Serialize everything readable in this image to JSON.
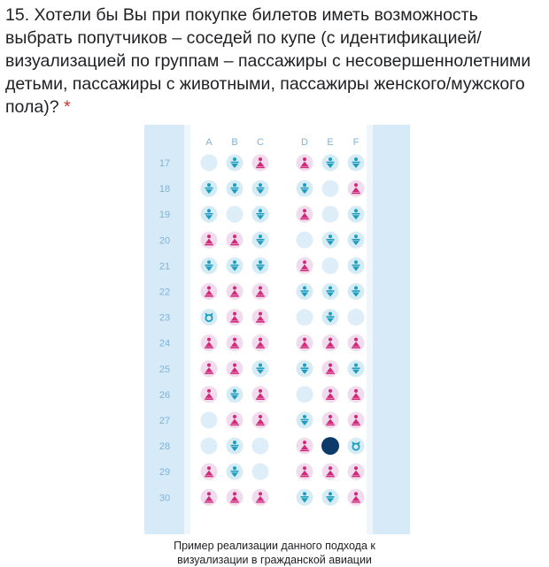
{
  "question": {
    "text": "15. Хотели бы Вы при покупке билетов иметь возможность выбрать попутчиков – соседей по купе (с идентификацией/визуализацией по группам – пассажиры с несовершеннолетними детьми, пассажиры с животными, пассажиры женского/мужского пола)?",
    "required_mark": "*",
    "required_color": "#d93025"
  },
  "seatmap": {
    "columns_left": [
      "A",
      "B",
      "C"
    ],
    "columns_right": [
      "D",
      "E",
      "F"
    ],
    "colors": {
      "cabin_wall": "#d6eaf8",
      "label": "#7fb3d5",
      "empty_seat": "#deeef8",
      "male_bg": "#d6ecf5",
      "male_icon": "#1e9cc0",
      "female_bg": "#f0dcec",
      "female_icon": "#d1287a",
      "animal_bg": "#d6ecf5",
      "animal_icon": "#1e9cc0",
      "selected": "#0b3a6b"
    },
    "legend_codes": {
      "e": "empty-seat",
      "m": "male-passenger",
      "f": "female-passenger",
      "a": "passenger-with-animal",
      "s": "selected-seat"
    },
    "rows": [
      {
        "num": "17",
        "seats": [
          "e",
          "m",
          "f",
          "f",
          "m",
          "m"
        ]
      },
      {
        "num": "18",
        "seats": [
          "m",
          "m",
          "m",
          "m",
          "e",
          "f"
        ]
      },
      {
        "num": "19",
        "seats": [
          "m",
          "e",
          "m",
          "f",
          "e",
          "m"
        ]
      },
      {
        "num": "20",
        "seats": [
          "f",
          "f",
          "m",
          "e",
          "m",
          "m"
        ]
      },
      {
        "num": "21",
        "seats": [
          "m",
          "m",
          "m",
          "f",
          "e",
          "m"
        ]
      },
      {
        "num": "22",
        "seats": [
          "f",
          "f",
          "f",
          "m",
          "m",
          "m"
        ]
      },
      {
        "num": "23",
        "seats": [
          "a",
          "f",
          "f",
          "e",
          "m",
          "e"
        ]
      },
      {
        "num": "24",
        "seats": [
          "f",
          "f",
          "f",
          "f",
          "f",
          "f"
        ]
      },
      {
        "num": "25",
        "seats": [
          "f",
          "f",
          "m",
          "m",
          "f",
          "m"
        ]
      },
      {
        "num": "26",
        "seats": [
          "f",
          "m",
          "f",
          "e",
          "f",
          "f"
        ]
      },
      {
        "num": "27",
        "seats": [
          "e",
          "f",
          "f",
          "m",
          "f",
          "f"
        ]
      },
      {
        "num": "28",
        "seats": [
          "e",
          "m",
          "e",
          "f",
          "s",
          "a"
        ]
      },
      {
        "num": "29",
        "seats": [
          "f",
          "m",
          "e",
          "f",
          "f",
          "f"
        ]
      },
      {
        "num": "30",
        "seats": [
          "f",
          "f",
          "f",
          "m",
          "m",
          "f"
        ]
      }
    ]
  },
  "caption": {
    "line1": "Пример реализации данного подхода к",
    "line2": "визуализации в гражданской авиации"
  }
}
